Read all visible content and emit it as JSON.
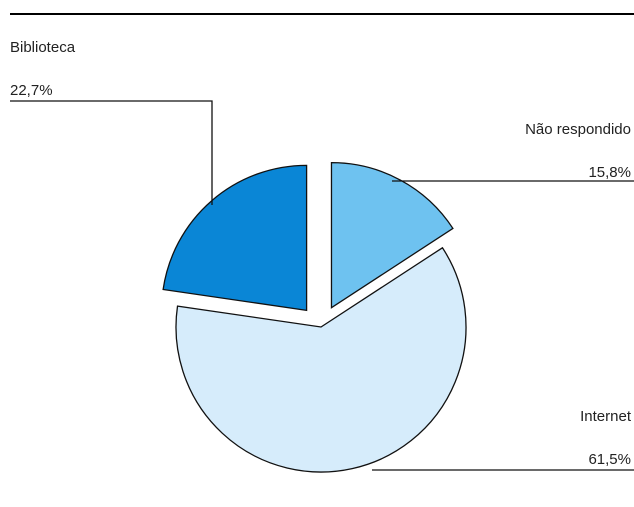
{
  "chart_data": {
    "type": "pie",
    "title": "",
    "slices": [
      {
        "label": "Não respondido",
        "value": 15.8,
        "value_label": "15,8%",
        "color": "#6ec2f0",
        "exploded": true
      },
      {
        "label": "Internet",
        "value": 61.5,
        "value_label": "61,5%",
        "color": "#d6ecfb",
        "exploded": false
      },
      {
        "label": "Biblioteca",
        "value": 22.7,
        "value_label": "22,7%",
        "color": "#0a86d6",
        "exploded": true
      }
    ],
    "legend": "none",
    "labels": "outside with leader lines"
  }
}
